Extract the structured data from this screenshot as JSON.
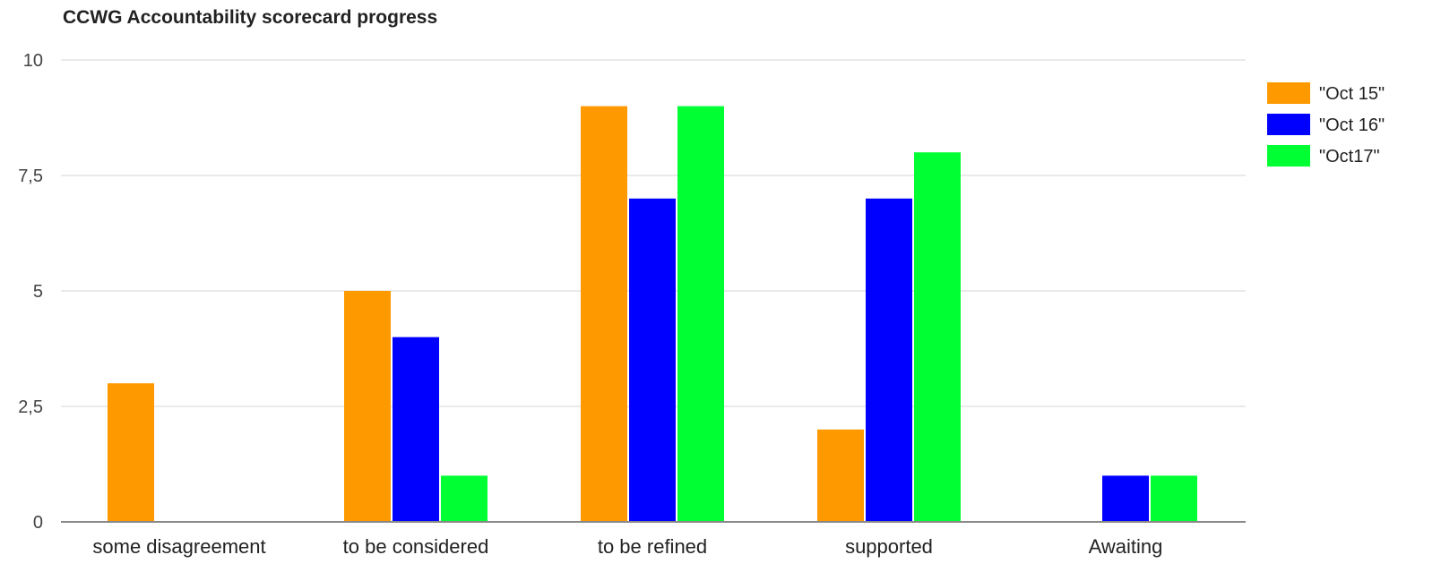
{
  "chart_data": {
    "type": "bar",
    "title": "CCWG Accountability scorecard progress",
    "xlabel": "",
    "ylabel": "",
    "categories": [
      "some disagreement",
      "to be considered",
      "to be refined",
      "supported",
      "Awaiting"
    ],
    "series": [
      {
        "name": "\"Oct 15\"",
        "values": [
          3,
          5,
          9,
          2,
          0
        ],
        "color": "#FF9900"
      },
      {
        "name": "\"Oct 16\"",
        "values": [
          0,
          4,
          7,
          7,
          1
        ],
        "color": "#0000FF"
      },
      {
        "name": "\"Oct17\"",
        "values": [
          0,
          1,
          9,
          8,
          1
        ],
        "color": "#00FF33"
      }
    ],
    "ylim": [
      0,
      10
    ],
    "yticks": [
      0,
      2.5,
      5,
      7.5,
      10
    ],
    "ytick_labels": [
      "0",
      "2,5",
      "5",
      "7,5",
      "10"
    ],
    "grid": true,
    "legend_position": "right"
  }
}
